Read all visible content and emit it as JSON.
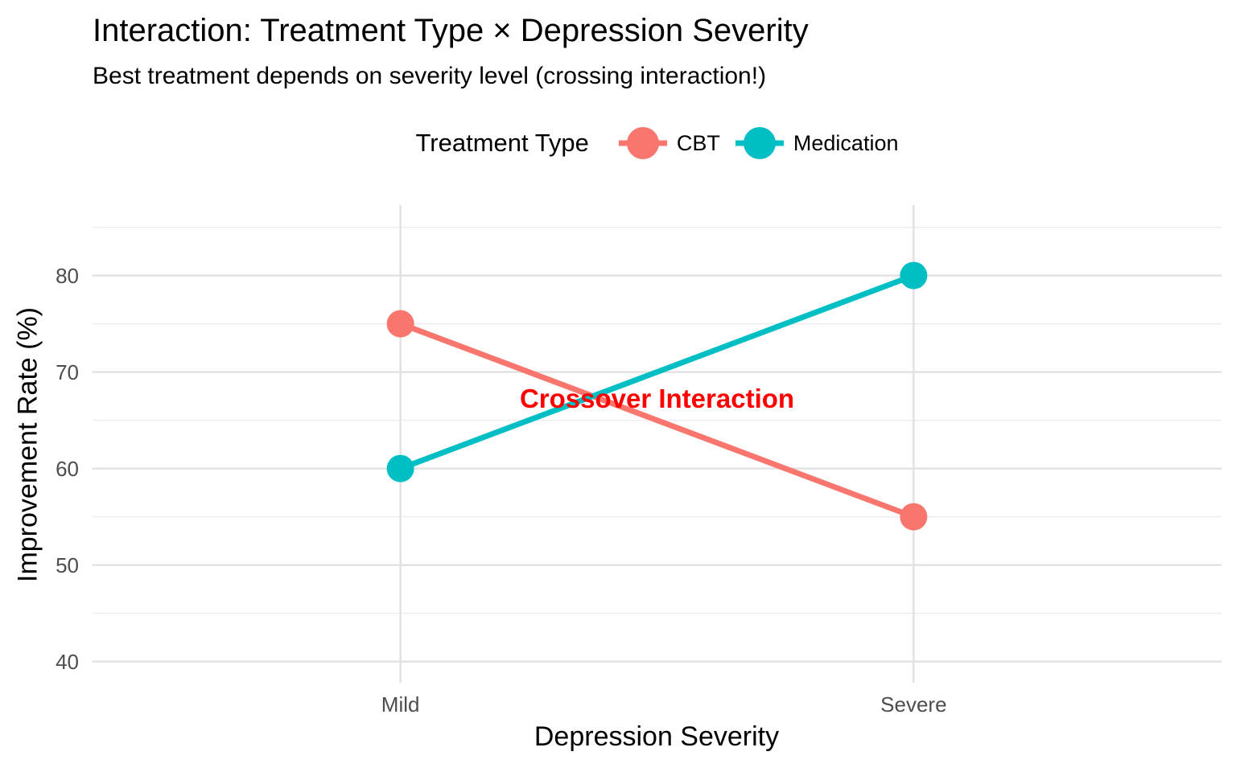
{
  "legend": {
    "title": "Treatment Type",
    "position": "top",
    "items": [
      {
        "label": "CBT",
        "color": "#F8766D"
      },
      {
        "label": "Medication",
        "color": "#00BFC4"
      }
    ]
  },
  "chart_data": {
    "type": "line",
    "title": "Interaction: Treatment Type × Depression Severity",
    "subtitle": "Best treatment depends on severity level (crossing interaction!)",
    "categories": [
      "Mild",
      "Severe"
    ],
    "series": [
      {
        "name": "CBT",
        "color": "#F8766D",
        "values": [
          75,
          55
        ]
      },
      {
        "name": "Medication",
        "color": "#00BFC4",
        "values": [
          60,
          80
        ]
      }
    ],
    "xlabel": "Depression Severity",
    "ylabel": "Improvement Rate (%)",
    "ylim": [
      37.8,
      87.3
    ],
    "yticks_major": [
      40,
      50,
      60,
      70,
      80
    ],
    "yticks_minor": [
      45,
      55,
      65,
      75,
      85
    ],
    "grid": "horizontal major+minor; vertical lines at each category",
    "legend_position": "top",
    "annotation": {
      "text": "Crossover Interaction",
      "x": 1.5,
      "y": 67.2,
      "color": "#FF0000",
      "bold": true
    }
  },
  "colors": {
    "background": "#FFFFFF",
    "grid_major": "#E2E2E2",
    "grid_minor": "#EDEDED",
    "tick_label": "#4D4D4D",
    "text": "#000000"
  }
}
